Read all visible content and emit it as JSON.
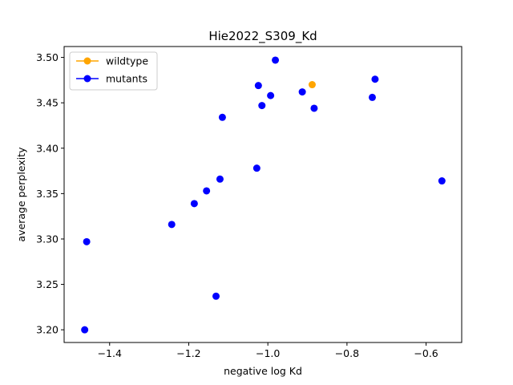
{
  "chart_data": {
    "type": "scatter",
    "title": "Hie2022_S309_Kd",
    "xlabel": "negative log Kd",
    "ylabel": "average perplexity",
    "xlim": [
      -1.515,
      -0.51
    ],
    "ylim": [
      3.186,
      3.512
    ],
    "xticks": [
      -1.4,
      -1.2,
      -1.0,
      -0.8,
      -0.6
    ],
    "xtick_labels": [
      "−1.4",
      "−1.2",
      "−1.0",
      "−0.8",
      "−0.6"
    ],
    "yticks": [
      3.2,
      3.25,
      3.3,
      3.35,
      3.4,
      3.45,
      3.5
    ],
    "ytick_labels": [
      "3.20",
      "3.25",
      "3.30",
      "3.35",
      "3.40",
      "3.45",
      "3.50"
    ],
    "grid": false,
    "legend_position": "upper-left",
    "series": [
      {
        "name": "wildtype",
        "color": "#ffa500",
        "points": [
          {
            "x": -0.888,
            "y": 3.47
          }
        ]
      },
      {
        "name": "mutants",
        "color": "#0000ff",
        "points": [
          {
            "x": -1.463,
            "y": 3.2
          },
          {
            "x": -1.458,
            "y": 3.297
          },
          {
            "x": -1.243,
            "y": 3.316
          },
          {
            "x": -1.186,
            "y": 3.339
          },
          {
            "x": -1.155,
            "y": 3.353
          },
          {
            "x": -1.121,
            "y": 3.366
          },
          {
            "x": -1.131,
            "y": 3.237
          },
          {
            "x": -1.115,
            "y": 3.434
          },
          {
            "x": -1.028,
            "y": 3.378
          },
          {
            "x": -1.024,
            "y": 3.469
          },
          {
            "x": -1.015,
            "y": 3.447
          },
          {
            "x": -0.993,
            "y": 3.458
          },
          {
            "x": -0.981,
            "y": 3.497
          },
          {
            "x": -0.913,
            "y": 3.462
          },
          {
            "x": -0.883,
            "y": 3.444
          },
          {
            "x": -0.736,
            "y": 3.456
          },
          {
            "x": -0.729,
            "y": 3.476
          },
          {
            "x": -0.56,
            "y": 3.364
          }
        ]
      }
    ]
  }
}
